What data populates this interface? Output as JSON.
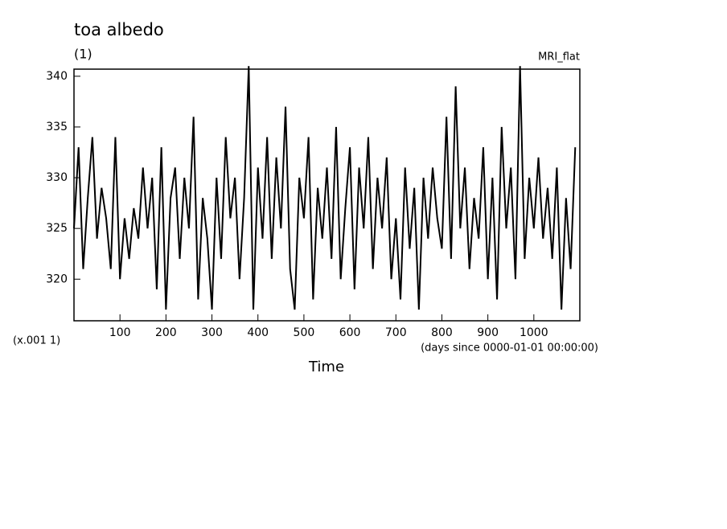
{
  "chart_data": {
    "type": "line",
    "title": "toa albedo",
    "subtitle": "(1)",
    "annotation": "MRI_flat",
    "y_scale_label": "(x.001 1)",
    "x_units_label": "(days since 0000-01-01 00:00:00)",
    "xlabel": "Time",
    "x": [
      0,
      10,
      20,
      30,
      40,
      50,
      60,
      70,
      80,
      90,
      100,
      110,
      120,
      130,
      140,
      150,
      160,
      170,
      180,
      190,
      200,
      210,
      220,
      230,
      240,
      250,
      260,
      270,
      280,
      290,
      300,
      310,
      320,
      330,
      340,
      350,
      360,
      370,
      380,
      390,
      400,
      410,
      420,
      430,
      440,
      450,
      460,
      470,
      480,
      490,
      500,
      510,
      520,
      530,
      540,
      550,
      560,
      570,
      580,
      590,
      600,
      610,
      620,
      630,
      640,
      650,
      660,
      670,
      680,
      690,
      700,
      710,
      720,
      730,
      740,
      750,
      760,
      770,
      780,
      790,
      800,
      810,
      820,
      830,
      840,
      850,
      860,
      870,
      880,
      890,
      900,
      910,
      920,
      930,
      940,
      950,
      960,
      970,
      980,
      990,
      1000,
      1010,
      1020,
      1030,
      1040,
      1050,
      1060,
      1070,
      1080,
      1090
    ],
    "series": [
      {
        "name": "MRI_flat",
        "color": "#000000",
        "values": [
          325,
          333,
          321,
          328,
          334,
          324,
          329,
          326,
          321,
          334,
          320,
          326,
          322,
          327,
          324,
          331,
          325,
          330,
          319,
          333,
          317,
          328,
          331,
          322,
          330,
          325,
          336,
          318,
          328,
          324,
          317,
          330,
          322,
          334,
          326,
          330,
          320,
          328,
          341,
          317,
          331,
          324,
          334,
          322,
          332,
          325,
          337,
          321,
          317,
          330,
          326,
          334,
          318,
          329,
          324,
          331,
          322,
          335,
          320,
          327,
          333,
          319,
          331,
          325,
          334,
          321,
          330,
          325,
          332,
          320,
          326,
          318,
          331,
          323,
          329,
          317,
          330,
          324,
          331,
          326,
          323,
          336,
          322,
          339,
          325,
          331,
          321,
          328,
          324,
          333,
          320,
          330,
          318,
          335,
          325,
          331,
          320,
          341,
          322,
          330,
          325,
          332,
          324,
          329,
          322,
          331,
          317,
          328,
          321,
          333
        ]
      }
    ],
    "xlim": [
      0,
      1100
    ],
    "ylim": [
      315.9,
      340.7
    ],
    "xticks": [
      100,
      200,
      300,
      400,
      500,
      600,
      700,
      800,
      900,
      1000
    ],
    "yticks": [
      320,
      325,
      330,
      335,
      340
    ]
  }
}
